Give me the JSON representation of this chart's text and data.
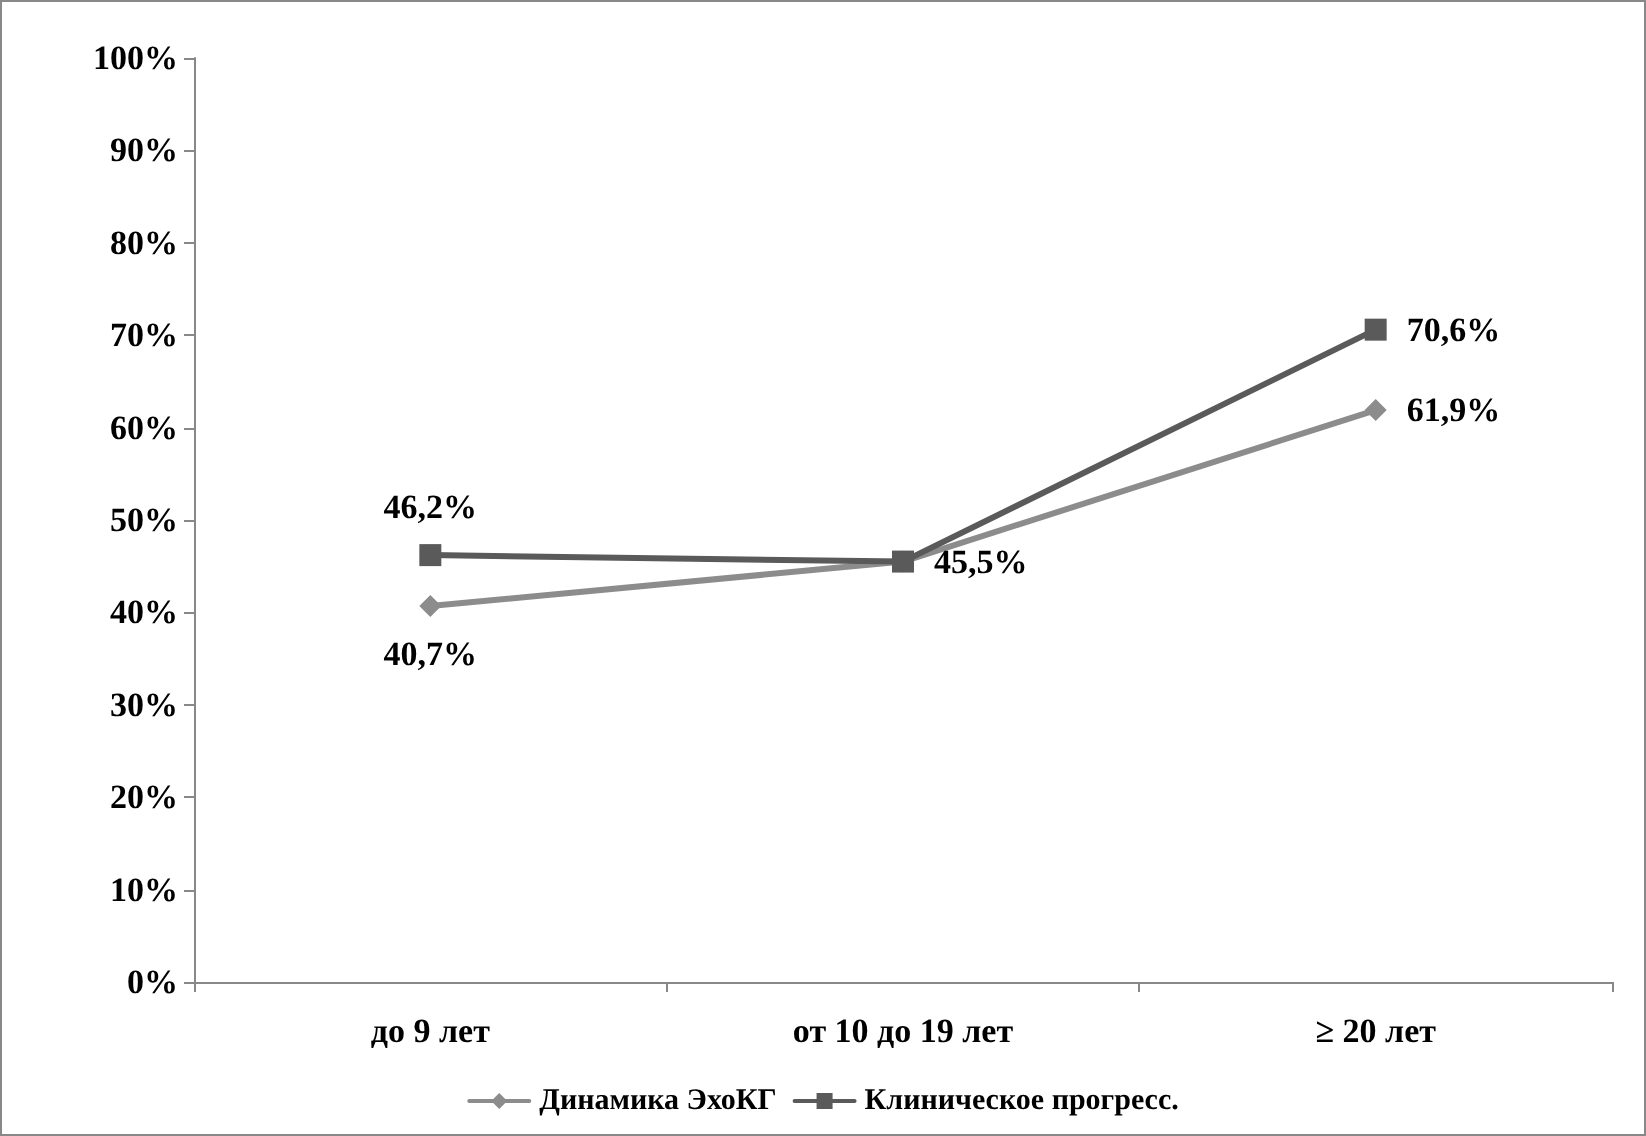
{
  "chart_data": {
    "type": "line",
    "categories": [
      "до 9 лет",
      "от 10 до 19 лет",
      "≥ 20 лет"
    ],
    "series": [
      {
        "name": "Динамика ЭхоКГ",
        "color": "#8c8c8c",
        "marker": "diamond",
        "values": [
          40.7,
          45.5,
          61.9
        ],
        "value_labels": [
          "40,7%",
          null,
          "61,9%"
        ]
      },
      {
        "name": "Клиническое прогресс.",
        "color": "#5a5a5a",
        "marker": "square",
        "values": [
          46.2,
          45.5,
          70.6
        ],
        "value_labels": [
          "46,2%",
          "45,5%",
          "70,6%"
        ]
      }
    ],
    "ylim": [
      0,
      100
    ],
    "yticks": [
      {
        "value": 0,
        "label": "0%"
      },
      {
        "value": 10,
        "label": "10%"
      },
      {
        "value": 20,
        "label": "20%"
      },
      {
        "value": 30,
        "label": "30%"
      },
      {
        "value": 40,
        "label": "40%"
      },
      {
        "value": 50,
        "label": "50%"
      },
      {
        "value": 60,
        "label": "60%"
      },
      {
        "value": 70,
        "label": "70%"
      },
      {
        "value": 80,
        "label": "80%"
      },
      {
        "value": 90,
        "label": "90%"
      },
      {
        "value": 100,
        "label": "100%"
      }
    ],
    "grid": false,
    "legend": "bottom",
    "line_style": "solid"
  }
}
